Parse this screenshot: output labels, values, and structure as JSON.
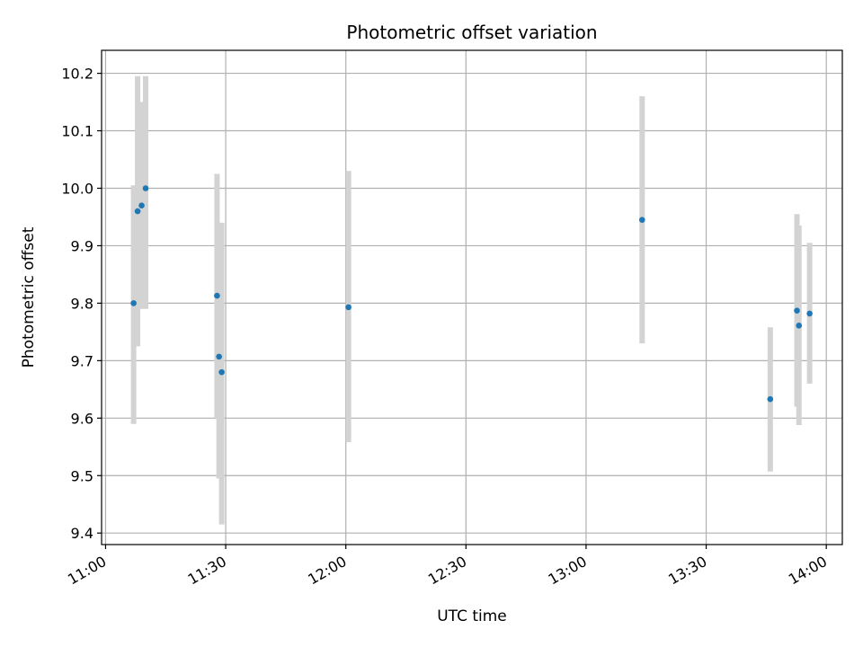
{
  "chart_data": {
    "type": "scatter",
    "title": "Photometric offset variation",
    "xlabel": "UTC time",
    "ylabel": "Photometric offset",
    "x_axis_type": "time",
    "xlim": [
      "10:59",
      "14:04"
    ],
    "ylim": [
      9.38,
      10.24
    ],
    "x_ticks": [
      "11:00",
      "11:30",
      "12:00",
      "12:30",
      "13:00",
      "13:30",
      "14:00"
    ],
    "y_ticks": [
      9.4,
      9.5,
      9.6,
      9.7,
      9.8,
      9.9,
      10.0,
      10.1,
      10.2
    ],
    "y_tick_labels": [
      "9.4",
      "9.5",
      "9.6",
      "9.7",
      "9.8",
      "9.9",
      "10.0",
      "10.1",
      "10.2"
    ],
    "x_tick_rotation": "30 degrees",
    "grid": true,
    "legend": "none",
    "colors": {
      "points": "#1f77b4",
      "error_bars": "#d3d3d3",
      "grid": "#b0b0b0"
    },
    "points": [
      {
        "x": "11:07:00",
        "y": 9.8,
        "ylo": 9.59,
        "yhi": 10.005
      },
      {
        "x": "11:08:00",
        "y": 9.96,
        "ylo": 9.725,
        "yhi": 10.195
      },
      {
        "x": "11:09:00",
        "y": 9.97,
        "ylo": 9.79,
        "yhi": 10.15
      },
      {
        "x": "11:10:00",
        "y": 10.0,
        "ylo": 9.79,
        "yhi": 10.195
      },
      {
        "x": "11:27:50",
        "y": 9.813,
        "ylo": 9.6,
        "yhi": 10.025
      },
      {
        "x": "11:28:20",
        "y": 9.707,
        "ylo": 9.495,
        "yhi": 9.94
      },
      {
        "x": "11:29:00",
        "y": 9.68,
        "ylo": 9.415,
        "yhi": 9.94
      },
      {
        "x": "12:00:40",
        "y": 9.793,
        "ylo": 9.558,
        "yhi": 10.03
      },
      {
        "x": "13:14:00",
        "y": 9.945,
        "ylo": 9.73,
        "yhi": 10.16
      },
      {
        "x": "13:46:00",
        "y": 9.633,
        "ylo": 9.507,
        "yhi": 9.758
      },
      {
        "x": "13:52:40",
        "y": 9.787,
        "ylo": 9.62,
        "yhi": 9.955
      },
      {
        "x": "13:53:10",
        "y": 9.761,
        "ylo": 9.588,
        "yhi": 9.935
      },
      {
        "x": "13:55:50",
        "y": 9.782,
        "ylo": 9.66,
        "yhi": 9.905
      }
    ]
  }
}
